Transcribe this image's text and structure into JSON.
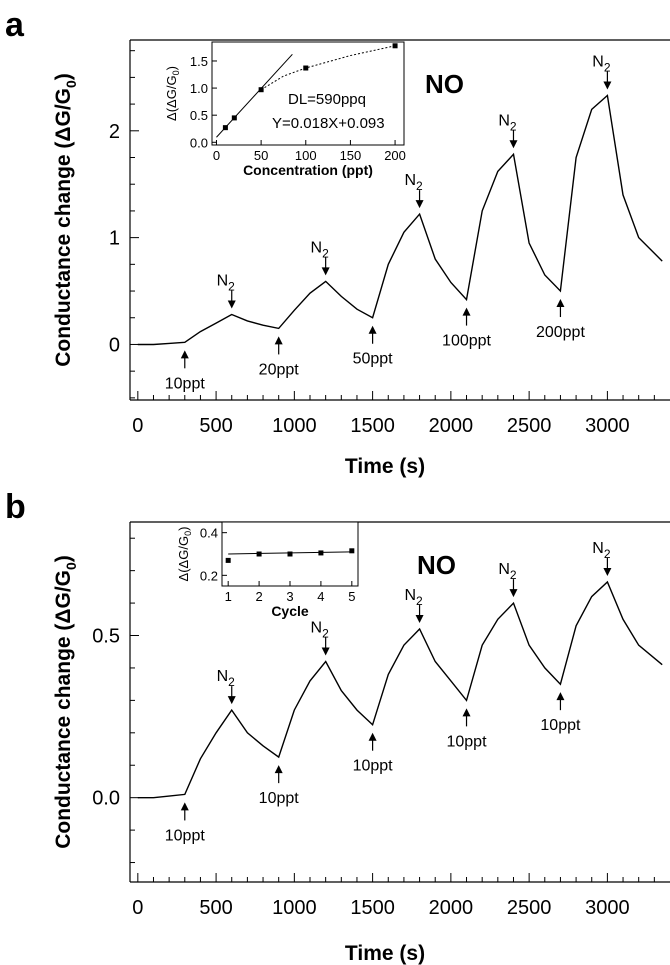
{
  "panels": [
    {
      "panel_label": "a",
      "gas": "NO",
      "xlabel": "Time (s)",
      "ylabel": "Conductance change (ΔG/G₀)",
      "ylabel_parts": [
        "Conductance change (ΔG/G",
        "0",
        ")"
      ],
      "xticks": [
        "0",
        "500",
        "1000",
        "1500",
        "2000",
        "2500",
        "3000"
      ],
      "yticks": [
        "0",
        "1",
        "2"
      ],
      "annotations": {
        "injections": [
          {
            "label": "10ppt",
            "x": 300,
            "y": 0.02
          },
          {
            "label": "20ppt",
            "x": 900,
            "y": 0.15
          },
          {
            "label": "50ppt",
            "x": 1500,
            "y": 0.25
          },
          {
            "label": "100ppt",
            "x": 2100,
            "y": 0.42
          },
          {
            "label": "200ppt",
            "x": 2700,
            "y": 0.5
          }
        ],
        "purges": [
          {
            "label": "N",
            "sub": "2",
            "x": 600,
            "y": 0.28
          },
          {
            "label": "N",
            "sub": "2",
            "x": 1200,
            "y": 0.59
          },
          {
            "label": "N",
            "sub": "2",
            "x": 1800,
            "y": 1.22
          },
          {
            "label": "N",
            "sub": "2",
            "x": 2400,
            "y": 1.78
          },
          {
            "label": "N",
            "sub": "2",
            "x": 3000,
            "y": 2.33
          }
        ]
      },
      "inset": {
        "xlabel": "Concentration (ppt)",
        "ylabel_parts": [
          "Δ(ΔG/G",
          "0",
          ")"
        ],
        "xticks": [
          "0",
          "50",
          "100",
          "150",
          "200"
        ],
        "yticks": [
          "0.0",
          "0.5",
          "1.0",
          "1.5"
        ],
        "detection_limit": "DL=590ppq",
        "fit_equation": "Y=0.018X+0.093"
      }
    },
    {
      "panel_label": "b",
      "gas": "NO",
      "xlabel": "Time (s)",
      "ylabel": "Conductance change (ΔG/G₀)",
      "ylabel_parts": [
        "Conductance change (ΔG/G",
        "0",
        ")"
      ],
      "xticks": [
        "0",
        "500",
        "1000",
        "1500",
        "2000",
        "2500",
        "3000"
      ],
      "yticks": [
        "0.0",
        "0.5"
      ],
      "annotations": {
        "injections": [
          {
            "label": "10ppt",
            "x": 300,
            "y": 0.01
          },
          {
            "label": "10ppt",
            "x": 900,
            "y": 0.125
          },
          {
            "label": "10ppt",
            "x": 1500,
            "y": 0.225
          },
          {
            "label": "10ppt",
            "x": 2100,
            "y": 0.3
          },
          {
            "label": "10ppt",
            "x": 2700,
            "y": 0.35
          }
        ],
        "purges": [
          {
            "label": "N",
            "sub": "2",
            "x": 600,
            "y": 0.27
          },
          {
            "label": "N",
            "sub": "2",
            "x": 1200,
            "y": 0.42
          },
          {
            "label": "N",
            "sub": "2",
            "x": 1800,
            "y": 0.52
          },
          {
            "label": "N",
            "sub": "2",
            "x": 2400,
            "y": 0.6
          },
          {
            "label": "N",
            "sub": "2",
            "x": 3000,
            "y": 0.665
          }
        ]
      },
      "inset": {
        "xlabel": "Cycle",
        "ylabel_parts": [
          "Δ(ΔG/G",
          "0",
          ")"
        ],
        "xticks": [
          "1",
          "2",
          "3",
          "4",
          "5"
        ],
        "yticks": [
          "0.2",
          "0.4"
        ]
      }
    }
  ],
  "chart_data": [
    {
      "type": "line",
      "title": "",
      "xlabel": "Time (s)",
      "ylabel": "Conductance change (ΔG/G₀)",
      "xlim": [
        -50,
        3400
      ],
      "ylim": [
        -0.52,
        2.85
      ],
      "series": [
        {
          "x": [
            0,
            100,
            200,
            300,
            400,
            500,
            600,
            700,
            800,
            900,
            1000,
            1100,
            1200,
            1300,
            1400,
            1500,
            1600,
            1700,
            1800,
            1900,
            2000,
            2100,
            2200,
            2300,
            2400,
            2500,
            2600,
            2700,
            2800,
            2900,
            3000,
            3100,
            3200,
            3350
          ],
          "y": [
            0.0,
            0.0,
            0.01,
            0.02,
            0.12,
            0.2,
            0.28,
            0.22,
            0.18,
            0.15,
            0.32,
            0.48,
            0.59,
            0.45,
            0.33,
            0.25,
            0.75,
            1.05,
            1.22,
            0.8,
            0.58,
            0.42,
            1.25,
            1.62,
            1.78,
            0.95,
            0.65,
            0.5,
            1.75,
            2.2,
            2.33,
            1.4,
            1.0,
            0.78
          ]
        }
      ]
    },
    {
      "type": "scatter",
      "title": "",
      "xlabel": "Concentration (ppt)",
      "ylabel": "Δ(ΔG/G₀)",
      "xlim": [
        -5,
        210
      ],
      "ylim": [
        -0.05,
        1.85
      ],
      "series": [
        {
          "x": [
            10,
            20,
            50,
            100,
            200
          ],
          "y": [
            0.27,
            0.45,
            0.97,
            1.37,
            1.78
          ]
        }
      ],
      "fit_equation": "Y=0.018X+0.093",
      "detection_limit": "DL=590ppq"
    },
    {
      "type": "line",
      "title": "",
      "xlabel": "Time (s)",
      "ylabel": "Conductance change (ΔG/G₀)",
      "xlim": [
        -50,
        3400
      ],
      "ylim": [
        -0.26,
        0.85
      ],
      "series": [
        {
          "x": [
            0,
            100,
            200,
            300,
            400,
            500,
            600,
            700,
            800,
            900,
            1000,
            1100,
            1200,
            1300,
            1400,
            1500,
            1600,
            1700,
            1800,
            1900,
            2000,
            2100,
            2200,
            2300,
            2400,
            2500,
            2600,
            2700,
            2800,
            2900,
            3000,
            3100,
            3200,
            3350
          ],
          "y": [
            0.0,
            0.0,
            0.005,
            0.01,
            0.12,
            0.2,
            0.27,
            0.2,
            0.16,
            0.125,
            0.27,
            0.36,
            0.42,
            0.33,
            0.27,
            0.225,
            0.38,
            0.47,
            0.52,
            0.42,
            0.36,
            0.3,
            0.47,
            0.55,
            0.6,
            0.47,
            0.4,
            0.35,
            0.53,
            0.62,
            0.665,
            0.55,
            0.47,
            0.41
          ]
        }
      ]
    },
    {
      "type": "scatter",
      "title": "",
      "xlabel": "Cycle",
      "ylabel": "Δ(ΔG/G₀)",
      "xlim": [
        0.8,
        5.2
      ],
      "ylim": [
        0.15,
        0.45
      ],
      "series": [
        {
          "x": [
            1,
            2,
            3,
            4,
            5
          ],
          "y": [
            0.27,
            0.3,
            0.3,
            0.305,
            0.315
          ]
        }
      ]
    }
  ]
}
